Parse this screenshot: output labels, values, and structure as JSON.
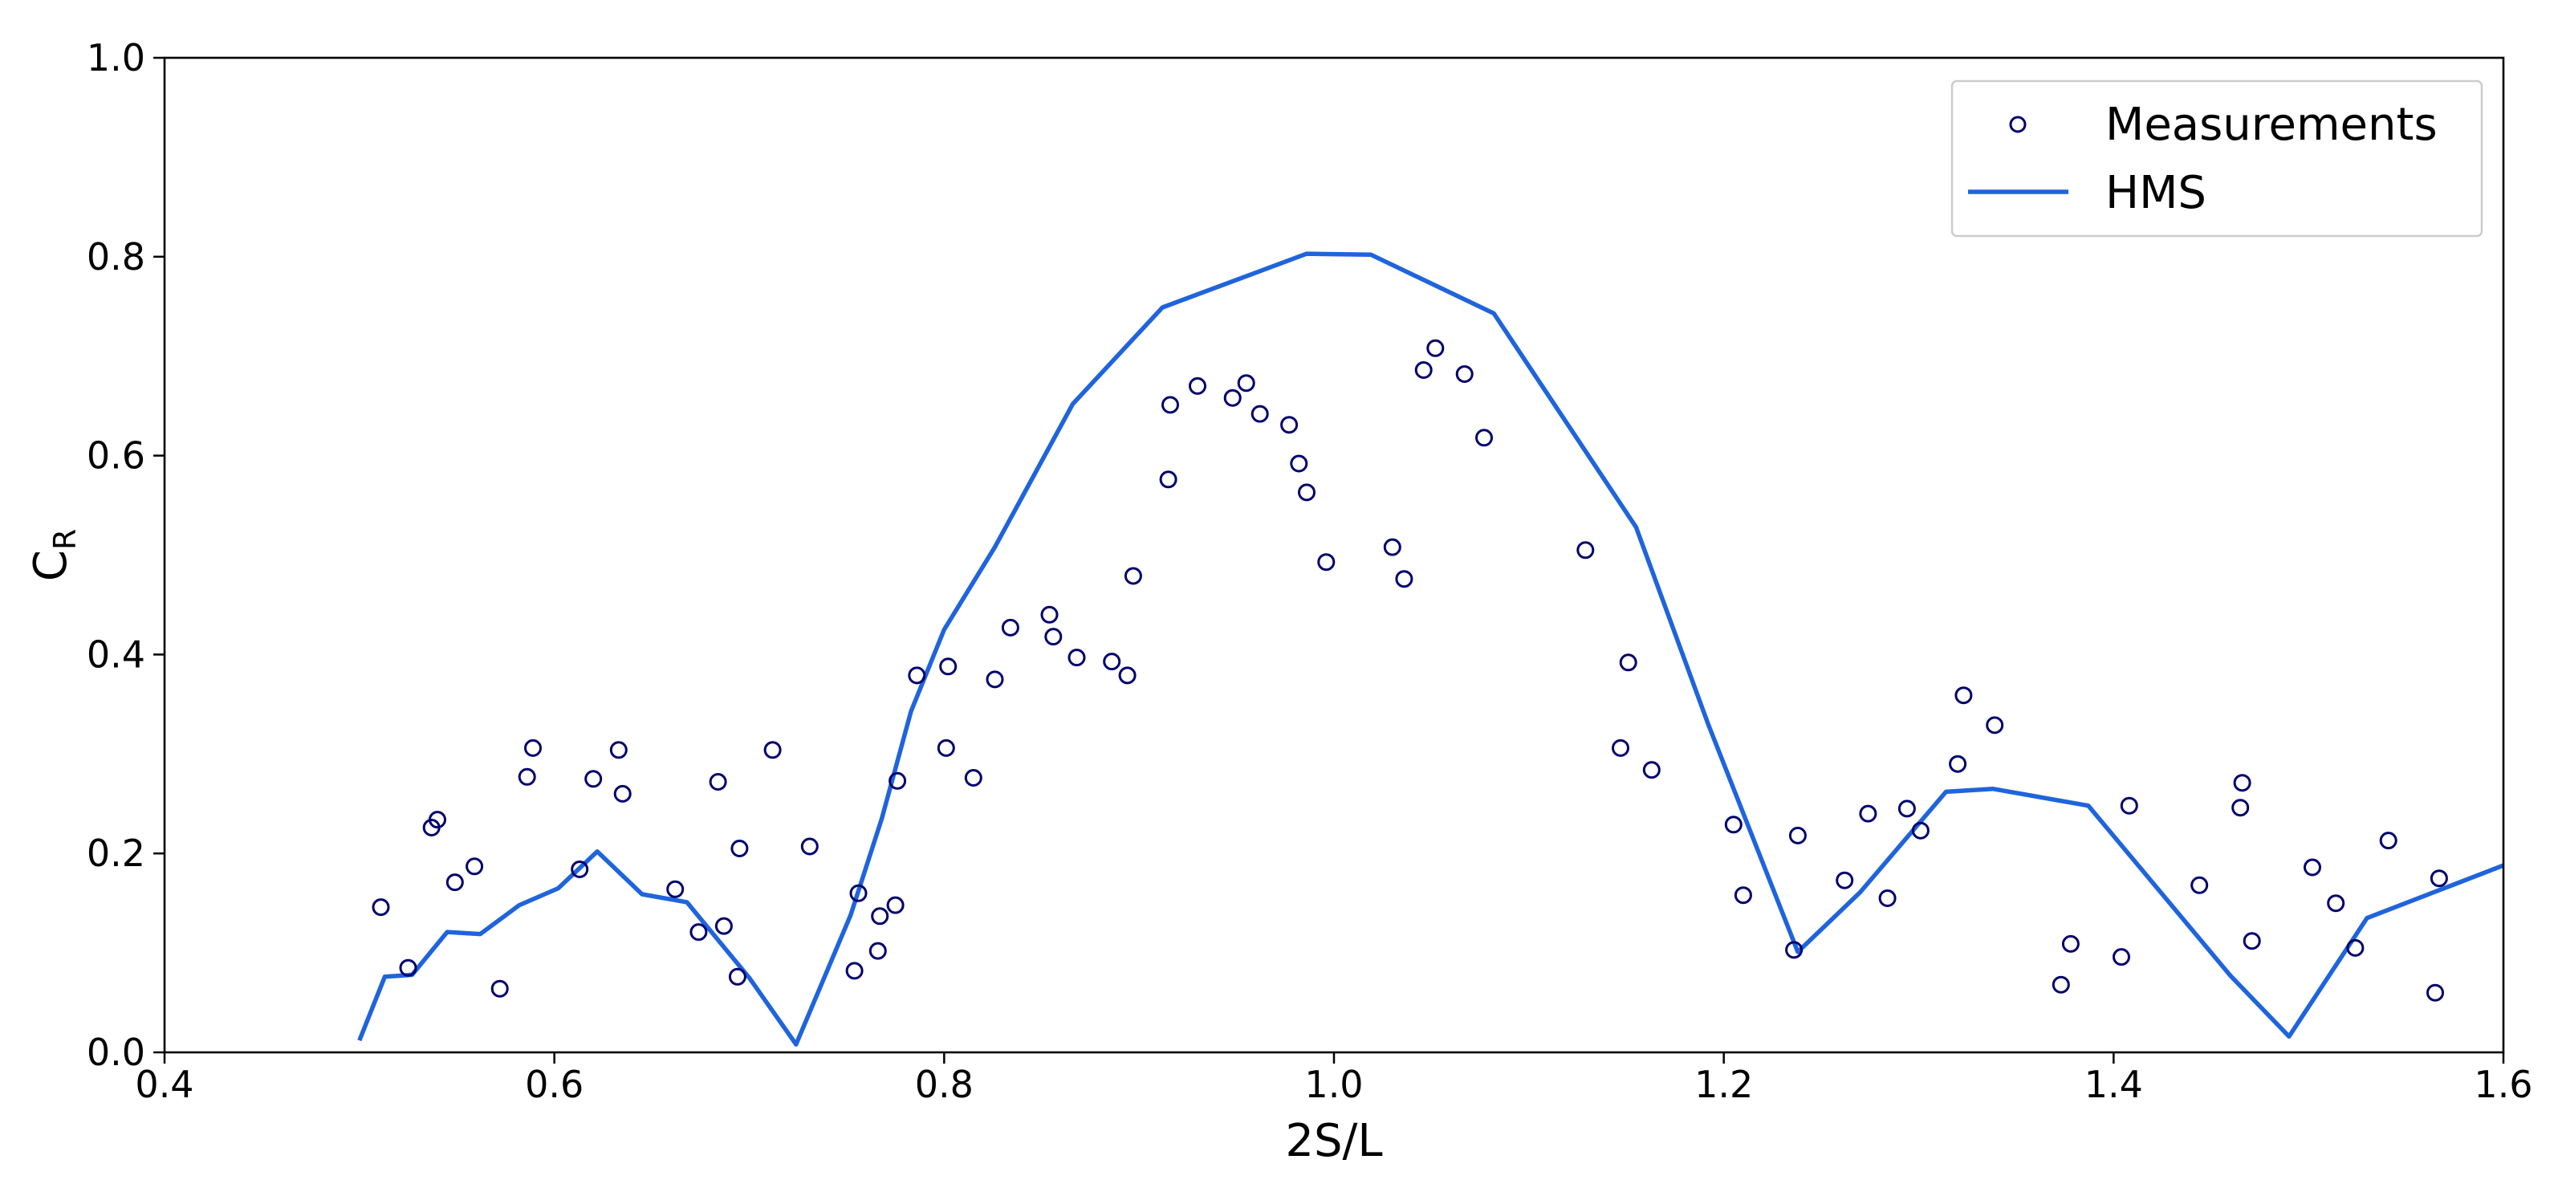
{
  "chart_data": {
    "type": "line",
    "xlabel": "2S/L",
    "ylabel": {
      "main": "C",
      "sub": "R"
    },
    "xlim": [
      0.4,
      1.6
    ],
    "ylim": [
      0.0,
      1.0
    ],
    "xticks": [
      0.4,
      0.6,
      0.8,
      1.0,
      1.2,
      1.4,
      1.6
    ],
    "yticks": [
      0.0,
      0.2,
      0.4,
      0.6,
      0.8,
      1.0
    ],
    "xtick_labels": [
      "0.4",
      "0.6",
      "0.8",
      "1.0",
      "1.2",
      "1.4",
      "1.6"
    ],
    "ytick_labels": [
      "0.0",
      "0.2",
      "0.4",
      "0.6",
      "0.8",
      "1.0"
    ],
    "grid": false,
    "legend_position": "top-right",
    "series": [
      {
        "name": "Measurements",
        "kind": "scatter",
        "color": "#00006e",
        "points": [
          [
            0.511,
            0.146
          ],
          [
            0.525,
            0.085
          ],
          [
            0.537,
            0.226
          ],
          [
            0.54,
            0.234
          ],
          [
            0.549,
            0.171
          ],
          [
            0.559,
            0.187
          ],
          [
            0.572,
            0.064
          ],
          [
            0.586,
            0.277
          ],
          [
            0.589,
            0.306
          ],
          [
            0.613,
            0.184
          ],
          [
            0.62,
            0.275
          ],
          [
            0.633,
            0.304
          ],
          [
            0.635,
            0.26
          ],
          [
            0.662,
            0.164
          ],
          [
            0.674,
            0.121
          ],
          [
            0.684,
            0.272
          ],
          [
            0.687,
            0.127
          ],
          [
            0.694,
            0.076
          ],
          [
            0.695,
            0.205
          ],
          [
            0.712,
            0.304
          ],
          [
            0.731,
            0.207
          ],
          [
            0.754,
            0.082
          ],
          [
            0.756,
            0.16
          ],
          [
            0.766,
            0.102
          ],
          [
            0.767,
            0.137
          ],
          [
            0.775,
            0.148
          ],
          [
            0.776,
            0.273
          ],
          [
            0.786,
            0.379
          ],
          [
            0.801,
            0.306
          ],
          [
            0.802,
            0.388
          ],
          [
            0.815,
            0.276
          ],
          [
            0.826,
            0.375
          ],
          [
            0.834,
            0.427
          ],
          [
            0.854,
            0.44
          ],
          [
            0.856,
            0.418
          ],
          [
            0.868,
            0.397
          ],
          [
            0.886,
            0.393
          ],
          [
            0.894,
            0.379
          ],
          [
            0.897,
            0.479
          ],
          [
            0.915,
            0.576
          ],
          [
            0.916,
            0.651
          ],
          [
            0.93,
            0.67
          ],
          [
            0.948,
            0.658
          ],
          [
            0.955,
            0.673
          ],
          [
            0.962,
            0.642
          ],
          [
            0.977,
            0.631
          ],
          [
            0.982,
            0.592
          ],
          [
            0.986,
            0.563
          ],
          [
            0.996,
            0.493
          ],
          [
            1.03,
            0.508
          ],
          [
            1.036,
            0.476
          ],
          [
            1.046,
            0.686
          ],
          [
            1.052,
            0.708
          ],
          [
            1.067,
            0.682
          ],
          [
            1.077,
            0.618
          ],
          [
            1.129,
            0.505
          ],
          [
            1.147,
            0.306
          ],
          [
            1.151,
            0.392
          ],
          [
            1.163,
            0.284
          ],
          [
            1.205,
            0.229
          ],
          [
            1.21,
            0.158
          ],
          [
            1.236,
            0.103
          ],
          [
            1.238,
            0.218
          ],
          [
            1.262,
            0.173
          ],
          [
            1.274,
            0.24
          ],
          [
            1.284,
            0.155
          ],
          [
            1.294,
            0.245
          ],
          [
            1.301,
            0.223
          ],
          [
            1.32,
            0.29
          ],
          [
            1.323,
            0.359
          ],
          [
            1.339,
            0.329
          ],
          [
            1.373,
            0.068
          ],
          [
            1.378,
            0.109
          ],
          [
            1.404,
            0.096
          ],
          [
            1.408,
            0.248
          ],
          [
            1.444,
            0.168
          ],
          [
            1.465,
            0.246
          ],
          [
            1.466,
            0.271
          ],
          [
            1.471,
            0.112
          ],
          [
            1.502,
            0.186
          ],
          [
            1.514,
            0.15
          ],
          [
            1.524,
            0.105
          ],
          [
            1.541,
            0.213
          ],
          [
            1.565,
            0.06
          ],
          [
            1.567,
            0.175
          ]
        ]
      },
      {
        "name": "HMS",
        "kind": "line",
        "color": "#1f64dc",
        "points": [
          [
            0.5,
            0.012
          ],
          [
            0.513,
            0.076
          ],
          [
            0.527,
            0.078
          ],
          [
            0.545,
            0.121
          ],
          [
            0.562,
            0.119
          ],
          [
            0.582,
            0.148
          ],
          [
            0.602,
            0.165
          ],
          [
            0.622,
            0.202
          ],
          [
            0.645,
            0.159
          ],
          [
            0.668,
            0.151
          ],
          [
            0.7,
            0.075
          ],
          [
            0.724,
            0.008
          ],
          [
            0.752,
            0.138
          ],
          [
            0.768,
            0.235
          ],
          [
            0.783,
            0.343
          ],
          [
            0.8,
            0.425
          ],
          [
            0.826,
            0.508
          ],
          [
            0.866,
            0.652
          ],
          [
            0.912,
            0.749
          ],
          [
            0.986,
            0.803
          ],
          [
            1.019,
            0.802
          ],
          [
            1.082,
            0.743
          ],
          [
            1.155,
            0.528
          ],
          [
            1.192,
            0.33
          ],
          [
            1.238,
            0.101
          ],
          [
            1.27,
            0.161
          ],
          [
            1.314,
            0.262
          ],
          [
            1.338,
            0.265
          ],
          [
            1.387,
            0.248
          ],
          [
            1.425,
            0.159
          ],
          [
            1.46,
            0.077
          ],
          [
            1.49,
            0.016
          ],
          [
            1.53,
            0.135
          ],
          [
            1.6,
            0.188
          ]
        ]
      }
    ]
  }
}
